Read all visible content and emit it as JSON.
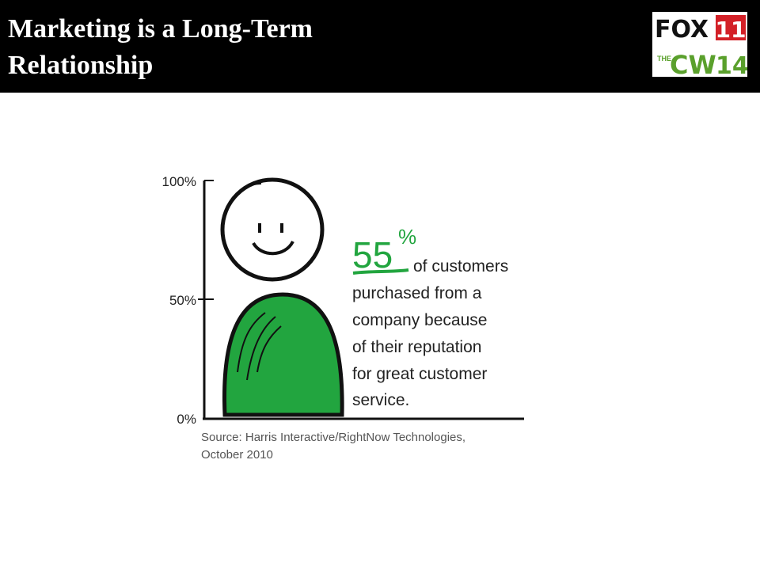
{
  "header": {
    "title": "Marketing is a Long-Term Relationship",
    "logo": {
      "fox": "FOX",
      "fox_number": "11",
      "cw_the": "THE",
      "cw": "CW",
      "cw_number": "14"
    }
  },
  "infographic": {
    "axis_labels": [
      "100%",
      "50%",
      "0%"
    ],
    "stat_number": "55",
    "stat_unit": "%",
    "lines": [
      "of customers",
      "purchased from a",
      "company because",
      "of their reputation",
      "for great customer",
      "service."
    ],
    "source": [
      "Source: Harris Interactive/RightNow Technologies,",
      "October 2010"
    ]
  }
}
